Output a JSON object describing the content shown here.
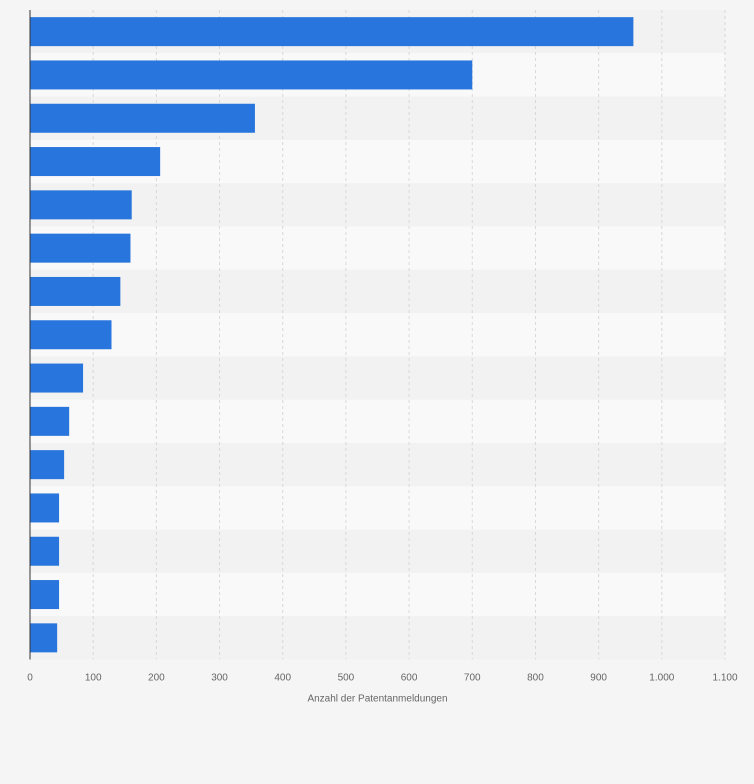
{
  "chart_data": {
    "type": "bar",
    "orientation": "horizontal",
    "categories": [
      "",
      "",
      "",
      "",
      "",
      "",
      "",
      "",
      "",
      "",
      "",
      "",
      "",
      "",
      ""
    ],
    "values": [
      955,
      700,
      356,
      206,
      161,
      159,
      143,
      129,
      84,
      62,
      54,
      46,
      46,
      46,
      43
    ],
    "xlabel": "Anzahl der Patentanmeldungen",
    "xlim": [
      0,
      1100
    ],
    "xticks": [
      0,
      100,
      200,
      300,
      400,
      500,
      600,
      700,
      800,
      900,
      1000,
      1100
    ],
    "xtick_labels": [
      "0",
      "100",
      "200",
      "300",
      "400",
      "500",
      "600",
      "700",
      "800",
      "900",
      "1.000",
      "1.100"
    ],
    "grid": true,
    "bar_color": "#2876dd",
    "band_colors": [
      "#f2f2f2",
      "#f9f9f9"
    ],
    "background_color": "#f5f5f5",
    "gridline_color": "#d8d8d8"
  }
}
